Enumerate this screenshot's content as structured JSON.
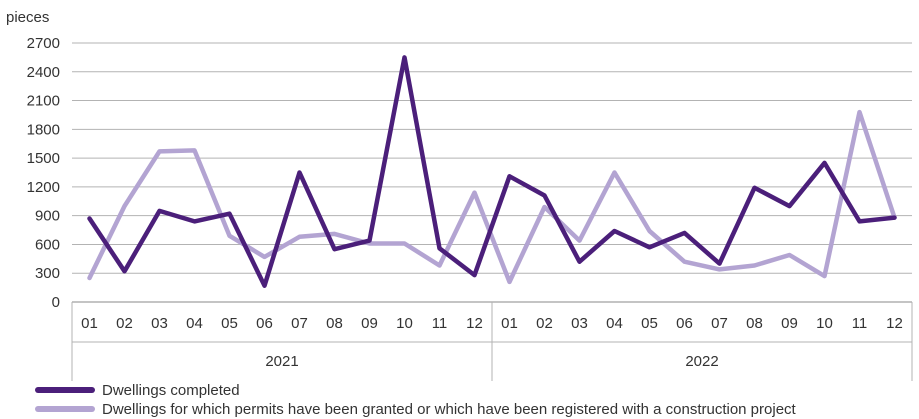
{
  "chart_data": {
    "type": "line",
    "ylabel": "pieces",
    "ylim": [
      0,
      2700
    ],
    "yticks": [
      0,
      300,
      600,
      900,
      1200,
      1500,
      1800,
      2100,
      2400,
      2700
    ],
    "categories": [
      "01",
      "02",
      "03",
      "04",
      "05",
      "06",
      "07",
      "08",
      "09",
      "10",
      "11",
      "12",
      "01",
      "02",
      "03",
      "04",
      "05",
      "06",
      "07",
      "08",
      "09",
      "10",
      "11",
      "12"
    ],
    "groups": [
      {
        "label": "2021",
        "count": 12
      },
      {
        "label": "2022",
        "count": 12
      }
    ],
    "grid": true,
    "legend_position": "bottom-left",
    "series": [
      {
        "name": "Dwellings completed",
        "color": "#4b1f7a",
        "values": [
          870,
          320,
          950,
          840,
          920,
          170,
          1350,
          550,
          640,
          2550,
          560,
          280,
          1310,
          1110,
          420,
          740,
          570,
          720,
          400,
          1190,
          1000,
          1450,
          840,
          880
        ]
      },
      {
        "name": "Dwellings for which permits have been granted or which have been registered with a construction project",
        "color": "#b3a4d2",
        "values": [
          250,
          1000,
          1570,
          1580,
          690,
          470,
          680,
          710,
          610,
          610,
          380,
          1140,
          210,
          990,
          640,
          1350,
          740,
          420,
          340,
          380,
          490,
          270,
          1980,
          880
        ]
      }
    ]
  }
}
